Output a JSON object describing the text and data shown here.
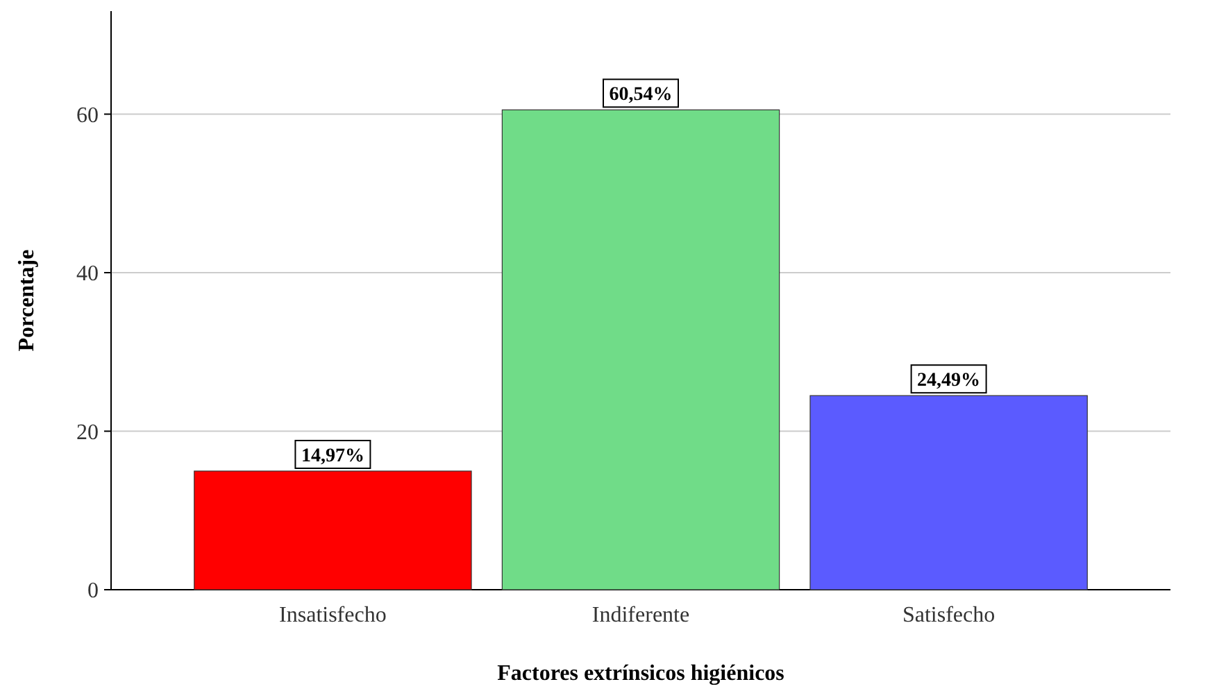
{
  "chart_data": {
    "type": "bar",
    "xlabel": "Factores extrínsicos higiénicos",
    "ylabel": "Porcentaje",
    "categories": [
      "Insatisfecho",
      "Indiferente",
      "Satisfecho"
    ],
    "values": [
      14.97,
      60.54,
      24.49
    ],
    "colors": [
      "#ff0000",
      "#70dc88",
      "#5b5bff"
    ],
    "value_labels": [
      "14,97%",
      "60,54%",
      "24,49%"
    ],
    "ylim": [
      0,
      73
    ],
    "yticks": [
      0,
      20,
      40,
      60
    ],
    "grid": "y"
  }
}
